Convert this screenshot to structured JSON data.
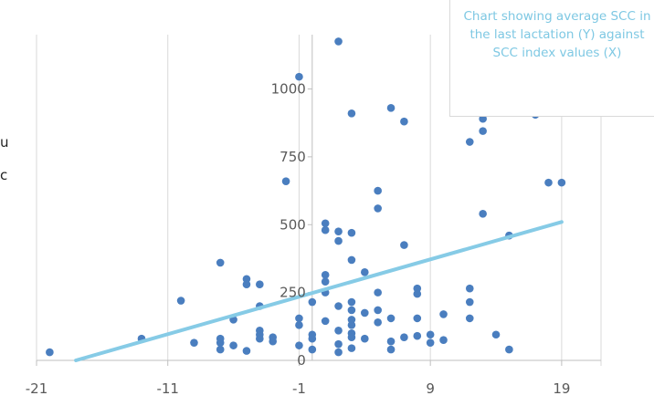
{
  "chart_data": {
    "type": "scatter",
    "title": "Chart showing average SCC in the last lactation (Y) against SCC index values (X)",
    "xlabel": "",
    "ylabel": "",
    "xlim": [
      -21,
      22
    ],
    "ylim": [
      0,
      1200
    ],
    "x_ticks": [
      "-21",
      "-11",
      "-1",
      "9",
      "19"
    ],
    "y_ticks": [
      "0",
      "250",
      "500",
      "750",
      "1000"
    ],
    "grid": "vertical",
    "points": [
      [
        -20,
        30
      ],
      [
        -13,
        80
      ],
      [
        -10,
        220
      ],
      [
        -9,
        65
      ],
      [
        -7,
        360
      ],
      [
        -7,
        80
      ],
      [
        -7,
        65
      ],
      [
        -7,
        40
      ],
      [
        -6,
        150
      ],
      [
        -6,
        55
      ],
      [
        -5,
        300
      ],
      [
        -5,
        280
      ],
      [
        -5,
        35
      ],
      [
        -4,
        280
      ],
      [
        -4,
        200
      ],
      [
        -4,
        110
      ],
      [
        -4,
        95
      ],
      [
        -4,
        80
      ],
      [
        -3,
        85
      ],
      [
        -3,
        70
      ],
      [
        -2,
        660
      ],
      [
        -1,
        1045
      ],
      [
        -1,
        155
      ],
      [
        -1,
        130
      ],
      [
        -1,
        55
      ],
      [
        0,
        215
      ],
      [
        0,
        95
      ],
      [
        0,
        80
      ],
      [
        0,
        40
      ],
      [
        1,
        505
      ],
      [
        1,
        480
      ],
      [
        1,
        315
      ],
      [
        1,
        290
      ],
      [
        1,
        250
      ],
      [
        1,
        145
      ],
      [
        2,
        1175
      ],
      [
        2,
        475
      ],
      [
        2,
        440
      ],
      [
        2,
        200
      ],
      [
        2,
        110
      ],
      [
        2,
        60
      ],
      [
        2,
        30
      ],
      [
        3,
        910
      ],
      [
        3,
        470
      ],
      [
        3,
        370
      ],
      [
        3,
        215
      ],
      [
        3,
        185
      ],
      [
        3,
        150
      ],
      [
        3,
        130
      ],
      [
        3,
        100
      ],
      [
        3,
        85
      ],
      [
        3,
        45
      ],
      [
        4,
        325
      ],
      [
        4,
        175
      ],
      [
        4,
        80
      ],
      [
        5,
        625
      ],
      [
        5,
        560
      ],
      [
        5,
        250
      ],
      [
        5,
        185
      ],
      [
        5,
        140
      ],
      [
        6,
        930
      ],
      [
        6,
        155
      ],
      [
        6,
        70
      ],
      [
        6,
        40
      ],
      [
        7,
        880
      ],
      [
        7,
        425
      ],
      [
        7,
        85
      ],
      [
        8,
        265
      ],
      [
        8,
        245
      ],
      [
        8,
        155
      ],
      [
        8,
        90
      ],
      [
        9,
        95
      ],
      [
        9,
        65
      ],
      [
        10,
        170
      ],
      [
        10,
        75
      ],
      [
        12,
        805
      ],
      [
        12,
        265
      ],
      [
        12,
        215
      ],
      [
        12,
        155
      ],
      [
        13,
        890
      ],
      [
        13,
        845
      ],
      [
        13,
        540
      ],
      [
        14,
        95
      ],
      [
        15,
        460
      ],
      [
        15,
        40
      ],
      [
        17,
        905
      ],
      [
        18,
        655
      ],
      [
        19,
        655
      ]
    ],
    "trendline": [
      [
        -18,
        0
      ],
      [
        19,
        510
      ]
    ]
  },
  "colors": {
    "points": "#4a7ebf",
    "trendline": "#86cbe6",
    "title": "#7ec8e3",
    "grid": "#d9d9d9",
    "axis": "#bfbfbf"
  },
  "clipped_left_text": [
    "u",
    "c"
  ]
}
